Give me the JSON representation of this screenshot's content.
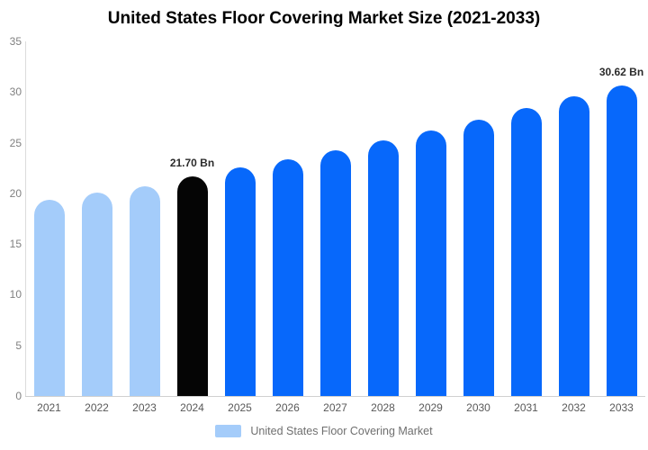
{
  "title": "United States Floor Covering Market Size (2021-2033)",
  "legend": {
    "label": "United States Floor Covering Market",
    "swatch_color": "#A4CCFA"
  },
  "colors": {
    "light_blue": "#A4CCFA",
    "bright_blue": "#0768FB",
    "black_bar": "#050505",
    "axis_line": "#dcdcdc",
    "ytick_text": "#808080",
    "xtick_text": "#595959",
    "data_label_text": "#2b2b2b",
    "background": "#ffffff"
  },
  "chart_data": {
    "type": "bar",
    "title": "United States Floor Covering Market Size (2021-2033)",
    "categories": [
      "2021",
      "2022",
      "2023",
      "2024",
      "2025",
      "2026",
      "2027",
      "2028",
      "2029",
      "2030",
      "2031",
      "2032",
      "2033"
    ],
    "values": [
      19.4,
      20.05,
      20.7,
      21.7,
      22.6,
      23.4,
      24.25,
      25.2,
      26.25,
      27.3,
      28.4,
      29.6,
      30.62
    ],
    "bar_colors": [
      "#A4CCFA",
      "#A4CCFA",
      "#A4CCFA",
      "#050505",
      "#0768FB",
      "#0768FB",
      "#0768FB",
      "#0768FB",
      "#0768FB",
      "#0768FB",
      "#0768FB",
      "#0768FB",
      "#0768FB"
    ],
    "data_labels": [
      null,
      null,
      null,
      "21.70 Bn",
      null,
      null,
      null,
      null,
      null,
      null,
      null,
      null,
      "30.62 Bn"
    ],
    "xlabel": "",
    "ylabel": "",
    "ylim": [
      0,
      35
    ],
    "yticks": [
      0,
      5,
      10,
      15,
      20,
      25,
      30,
      35
    ],
    "grid": false,
    "legend_position": "bottom",
    "legend_entries": [
      "United States Floor Covering Market"
    ]
  }
}
